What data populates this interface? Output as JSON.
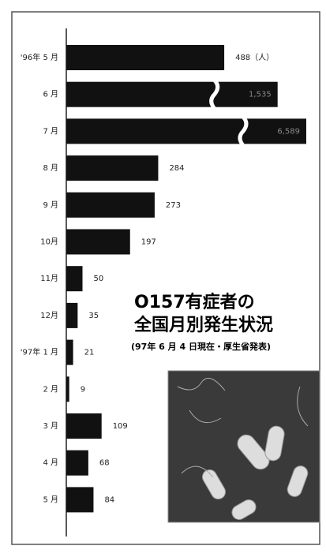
{
  "chart_data": {
    "type": "bar",
    "orientation": "horizontal",
    "title": [
      "O157有症者の",
      "全国月別発生状況"
    ],
    "subtitle": "(97年 6 月 4 日現在・厚生省発表)",
    "categories": [
      "'96年 5 月",
      "6 月",
      "7 月",
      "8 月",
      "9 月",
      "10月",
      "11月",
      "12月",
      "'97年 1 月",
      "2 月",
      "3 月",
      "4 月",
      "5 月"
    ],
    "values": [
      488,
      1535,
      6589,
      284,
      273,
      197,
      50,
      35,
      21,
      9,
      109,
      68,
      84
    ],
    "value_labels": [
      "488（人）",
      "1,535",
      "6,589",
      "284",
      "273",
      "197",
      "50",
      "35",
      "21",
      "9",
      "109",
      "68",
      "84"
    ],
    "color": "#111111"
  }
}
